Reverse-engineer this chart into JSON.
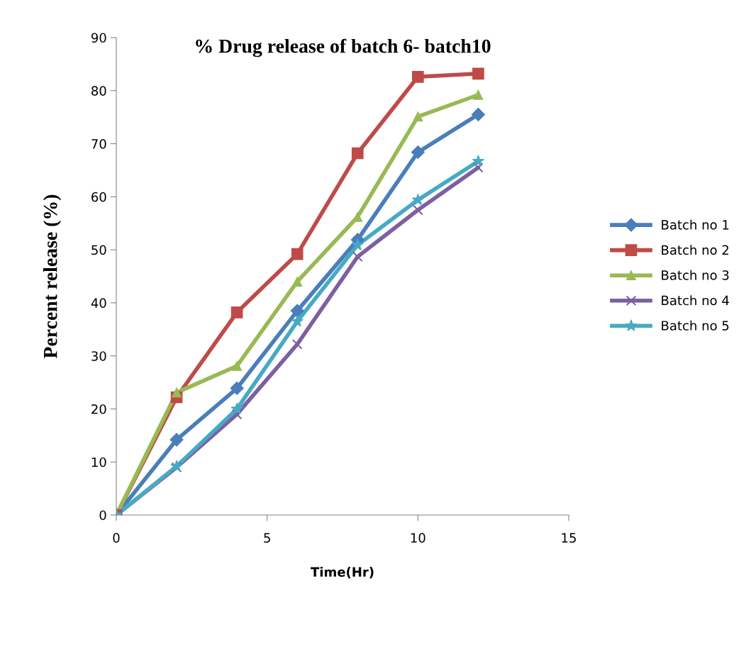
{
  "chart_data": {
    "type": "line",
    "title": "% Drug release of batch 6- batch10",
    "xlabel": "Time(Hr)",
    "ylabel": "Percent release (%)",
    "x": [
      0,
      2,
      4,
      6,
      8,
      10,
      12
    ],
    "series": [
      {
        "name": "Batch no 1",
        "color": "#4a7ebb",
        "marker": "diamond",
        "values": [
          0,
          14.2,
          23.9,
          38.5,
          51.9,
          68.4,
          75.5
        ]
      },
      {
        "name": "Batch no 2",
        "color": "#be4b48",
        "marker": "square",
        "values": [
          0,
          22.2,
          38.2,
          49.2,
          68.2,
          82.6,
          83.2
        ]
      },
      {
        "name": "Batch no 3",
        "color": "#98b954",
        "marker": "triangle",
        "values": [
          0,
          23.1,
          28.1,
          44,
          56.2,
          75.1,
          79.2
        ]
      },
      {
        "name": "Batch no 4",
        "color": "#7d60a0",
        "marker": "cross",
        "values": [
          0,
          9,
          19,
          32.2,
          48.7,
          57.5,
          65.5
        ]
      },
      {
        "name": "Batch no 5",
        "color": "#46aac5",
        "marker": "star",
        "values": [
          0,
          9.2,
          20,
          36.5,
          50.9,
          59.4,
          66.7
        ]
      }
    ],
    "xlim": [
      0,
      15
    ],
    "xticks": [
      0,
      5,
      10,
      15
    ],
    "ylim": [
      0,
      90
    ],
    "yticks": [
      0,
      10,
      20,
      30,
      40,
      50,
      60,
      70,
      80,
      90
    ],
    "grid": false,
    "legend": "right",
    "line_style": "solid"
  }
}
